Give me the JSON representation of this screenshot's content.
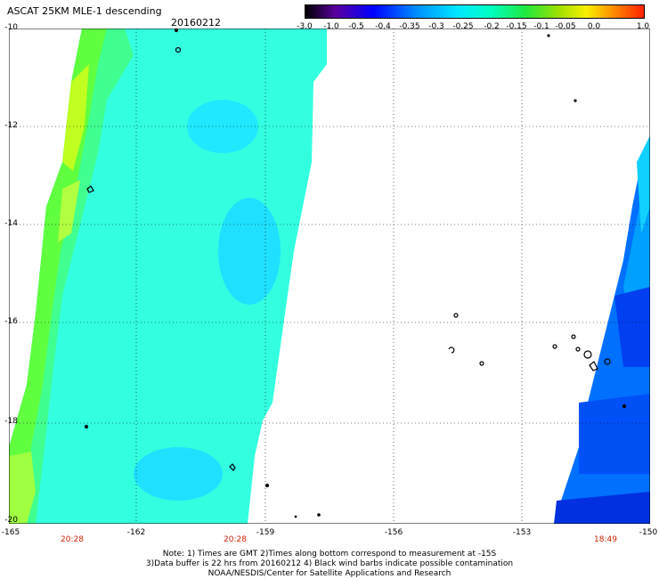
{
  "title": "ASCAT 25KM MLE-1 descending",
  "date": "20160212",
  "colorbar": {
    "ticks": [
      "-3.0",
      "-1.0",
      "-0.5",
      "-0.4",
      "-0.35",
      "-0.3",
      "-0.25",
      "-0.2",
      "-0.15",
      "-0.1",
      "-0.05",
      "0.0",
      "1.0"
    ],
    "colors": [
      "#000000",
      "#6a00a8",
      "#0000ff",
      "#0060ff",
      "#00a0ff",
      "#00e0ff",
      "#00ffd0",
      "#00f080",
      "#40e020",
      "#a0e000",
      "#f0f000",
      "#ffa000",
      "#ff3000"
    ]
  },
  "axes": {
    "lat_labels": [
      "-10",
      "-12",
      "-14",
      "-16",
      "-18",
      "-20"
    ],
    "lon_labels": [
      "-165",
      "-162",
      "-159",
      "-156",
      "-153",
      "-150"
    ],
    "times": [
      "20:28",
      "20:28",
      "18:49"
    ]
  },
  "notes": [
    "Note: 1) Times are GMT 2)Times along bottom correspond to measurement at -15S",
    "3)Data buffer is 22 hrs from 20160212 4) Black wind barbs indicate possible contamination",
    "NOAA/NESDIS/Center for Satellite Applications and Research"
  ],
  "colors": {
    "grid": "#000000",
    "time_label": "#cc2200"
  }
}
